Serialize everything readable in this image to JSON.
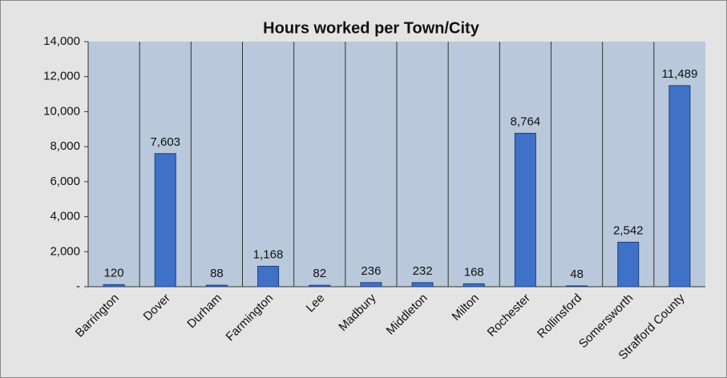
{
  "chart_data": {
    "type": "bar",
    "title": "Hours worked per Town/City",
    "categories": [
      "Barrington",
      "Dover",
      "Durham",
      "Farmington",
      "Lee",
      "Madbury",
      "Middleton",
      "Milton",
      "Rochester",
      "Rollinsford",
      "Somersworth",
      "Strafford County"
    ],
    "values": [
      120,
      7603,
      88,
      1168,
      82,
      236,
      232,
      168,
      8764,
      48,
      2542,
      11489
    ],
    "value_labels": [
      "120",
      "7,603",
      "88",
      "1,168",
      "82",
      "236",
      "232",
      "168",
      "8,764",
      "48",
      "2,542",
      "11,489"
    ],
    "color": "#3f72c6",
    "ylim": [
      0,
      14000
    ],
    "yticks": [
      {
        "value": 0,
        "label": "-"
      },
      {
        "value": 2000,
        "label": "2,000"
      },
      {
        "value": 4000,
        "label": "4,000"
      },
      {
        "value": 6000,
        "label": "6,000"
      },
      {
        "value": 8000,
        "label": "8,000"
      },
      {
        "value": 10000,
        "label": "10,000"
      },
      {
        "value": 12000,
        "label": "12,000"
      },
      {
        "value": 14000,
        "label": "14,000"
      }
    ],
    "grid": true
  }
}
